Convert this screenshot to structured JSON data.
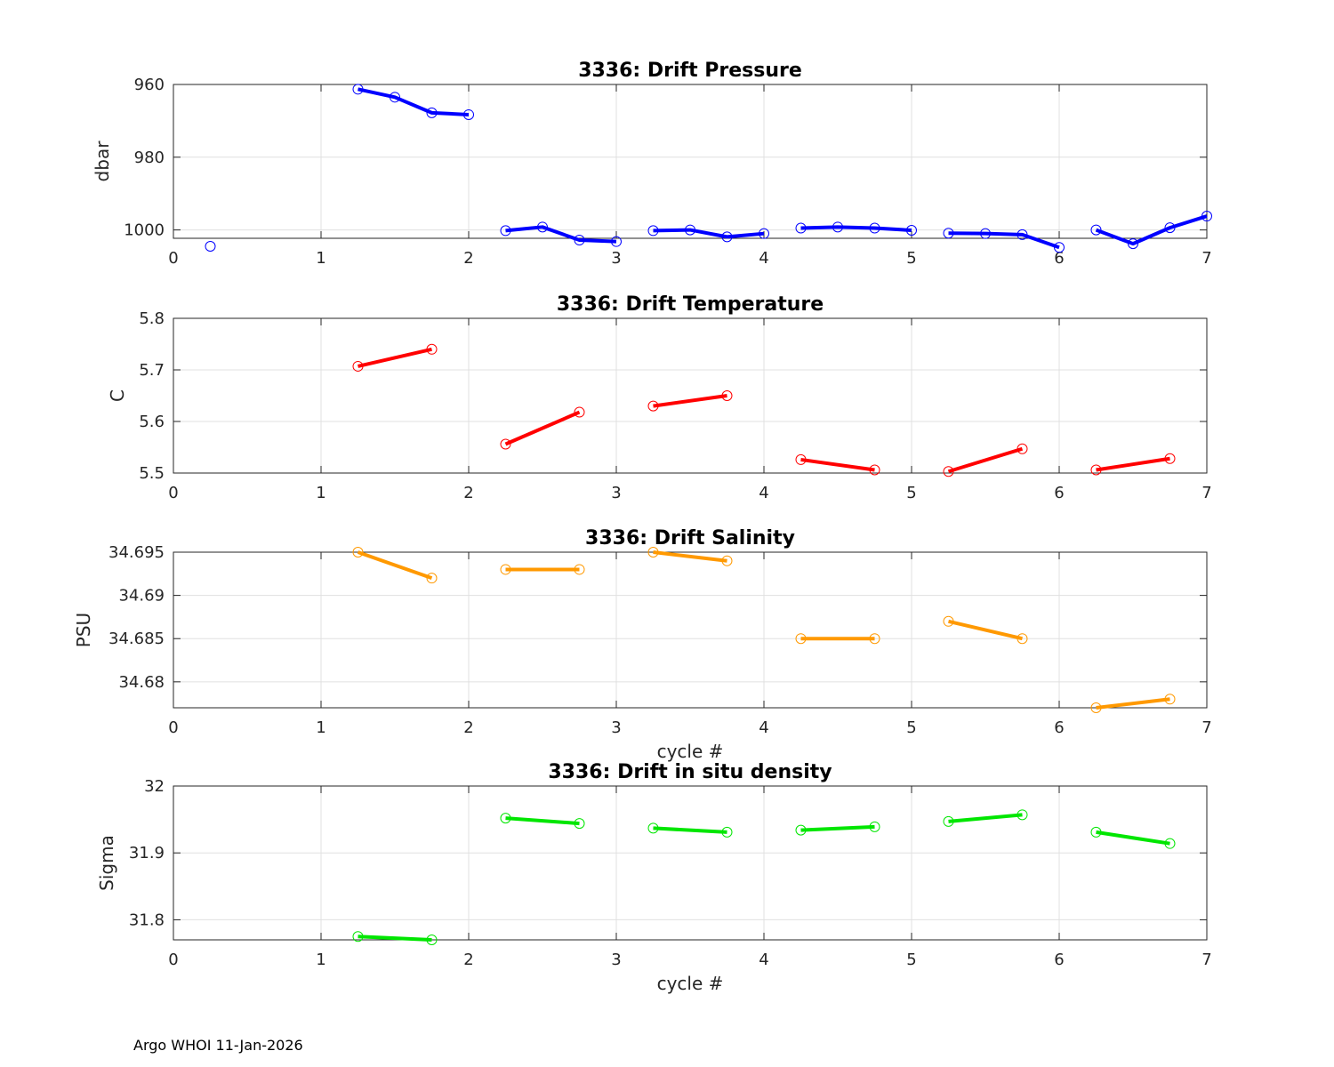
{
  "footer": "Argo WHOI 11-Jan-2026",
  "colors": {
    "pressure": "#0000ff",
    "temperature": "#ff0000",
    "salinity": "#ff9900",
    "density": "#00e600",
    "grid": "#e0e0e0",
    "axis": "#262626"
  },
  "chart_data": [
    {
      "type": "line",
      "title": "3336: Drift Pressure",
      "xlabel": "",
      "ylabel": "dbar",
      "xlim": [
        0,
        7
      ],
      "ylim": [
        960,
        1002.3
      ],
      "y_reversed": true,
      "xticks": [
        "0",
        "1",
        "2",
        "3",
        "4",
        "5",
        "6",
        "7"
      ],
      "yticks": [
        960,
        980,
        1000
      ],
      "ytick_labels": [
        "960",
        "980",
        "1000"
      ],
      "color_key": "pressure",
      "segments": [
        [
          [
            0.25,
            1004.5
          ]
        ],
        [
          [
            1.25,
            961.3
          ],
          [
            1.5,
            963.5
          ],
          [
            1.75,
            967.8
          ],
          [
            2.0,
            968.3
          ]
        ],
        [
          [
            2.25,
            1000.2
          ],
          [
            2.5,
            999.2
          ],
          [
            2.75,
            1002.8
          ],
          [
            3.0,
            1003.2
          ]
        ],
        [
          [
            3.25,
            1000.2
          ],
          [
            3.5,
            1000.0
          ],
          [
            3.75,
            1001.9
          ],
          [
            4.0,
            1001.0
          ]
        ],
        [
          [
            4.25,
            999.5
          ],
          [
            4.5,
            999.2
          ],
          [
            4.75,
            999.5
          ],
          [
            5.0,
            1000.1
          ]
        ],
        [
          [
            5.25,
            1000.9
          ],
          [
            5.5,
            1001.0
          ],
          [
            5.75,
            1001.3
          ],
          [
            6.0,
            1004.8
          ]
        ],
        [
          [
            6.25,
            1000.0
          ],
          [
            6.5,
            1003.8
          ],
          [
            6.75,
            999.4
          ],
          [
            7.0,
            996.2
          ]
        ]
      ]
    },
    {
      "type": "line",
      "title": "3336: Drift Temperature",
      "xlabel": "",
      "ylabel": "C",
      "xlim": [
        0,
        7
      ],
      "ylim": [
        5.5,
        5.8
      ],
      "y_reversed": false,
      "xticks": [
        "0",
        "1",
        "2",
        "3",
        "4",
        "5",
        "6",
        "7"
      ],
      "yticks": [
        5.5,
        5.6,
        5.7,
        5.8
      ],
      "ytick_labels": [
        "5.5",
        "5.6",
        "5.7",
        "5.8"
      ],
      "color_key": "temperature",
      "segments": [
        [
          [
            1.25,
            5.707
          ],
          [
            1.75,
            5.74
          ]
        ],
        [
          [
            2.25,
            5.556
          ],
          [
            2.75,
            5.618
          ]
        ],
        [
          [
            3.25,
            5.63
          ],
          [
            3.75,
            5.65
          ]
        ],
        [
          [
            4.25,
            5.526
          ],
          [
            4.75,
            5.506
          ]
        ],
        [
          [
            5.25,
            5.503
          ],
          [
            5.75,
            5.547
          ]
        ],
        [
          [
            6.25,
            5.506
          ],
          [
            6.75,
            5.528
          ]
        ]
      ]
    },
    {
      "type": "line",
      "title": "3336: Drift Salinity",
      "xlabel": "cycle #",
      "ylabel": "PSU",
      "xlim": [
        0,
        7
      ],
      "ylim": [
        34.677,
        34.695
      ],
      "y_reversed": false,
      "xticks": [
        "0",
        "1",
        "2",
        "3",
        "4",
        "5",
        "6",
        "7"
      ],
      "yticks": [
        34.68,
        34.685,
        34.69,
        34.695
      ],
      "ytick_labels": [
        "34.68",
        "34.685",
        "34.69",
        "34.695"
      ],
      "color_key": "salinity",
      "segments": [
        [
          [
            1.25,
            34.695
          ],
          [
            1.75,
            34.692
          ]
        ],
        [
          [
            2.25,
            34.693
          ],
          [
            2.75,
            34.693
          ]
        ],
        [
          [
            3.25,
            34.695
          ],
          [
            3.75,
            34.694
          ]
        ],
        [
          [
            4.25,
            34.685
          ],
          [
            4.75,
            34.685
          ]
        ],
        [
          [
            5.25,
            34.687
          ],
          [
            5.75,
            34.685
          ]
        ],
        [
          [
            6.25,
            34.677
          ],
          [
            6.75,
            34.678
          ]
        ]
      ]
    },
    {
      "type": "line",
      "title": "3336: Drift in situ density",
      "xlabel": "cycle #",
      "ylabel": "Sigma",
      "xlim": [
        0,
        7
      ],
      "ylim": [
        31.77,
        32.0
      ],
      "y_reversed": false,
      "xticks": [
        "0",
        "1",
        "2",
        "3",
        "4",
        "5",
        "6",
        "7"
      ],
      "yticks": [
        31.8,
        31.9,
        32.0
      ],
      "ytick_labels": [
        "31.8",
        "31.9",
        "32"
      ],
      "color_key": "density",
      "segments": [
        [
          [
            1.25,
            31.775
          ],
          [
            1.75,
            31.77
          ]
        ],
        [
          [
            2.25,
            31.952
          ],
          [
            2.75,
            31.944
          ]
        ],
        [
          [
            3.25,
            31.937
          ],
          [
            3.75,
            31.931
          ]
        ],
        [
          [
            4.25,
            31.934
          ],
          [
            4.75,
            31.939
          ]
        ],
        [
          [
            5.25,
            31.947
          ],
          [
            5.75,
            31.957
          ]
        ],
        [
          [
            6.25,
            31.931
          ],
          [
            6.75,
            31.914
          ]
        ]
      ]
    }
  ]
}
